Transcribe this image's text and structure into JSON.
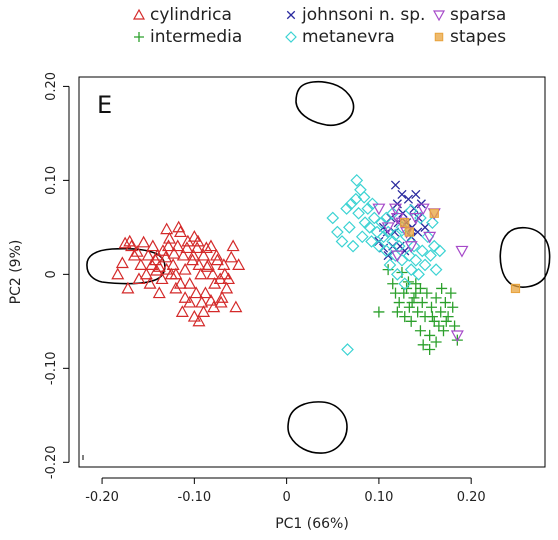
{
  "chart_data": {
    "type": "scatter",
    "panel_label": "E",
    "xlabel": "PC1 (66%)",
    "ylabel": "PC2 (9%)",
    "xlim": [
      -0.225,
      0.28
    ],
    "ylim": [
      -0.205,
      0.21
    ],
    "xticks": [
      {
        "value": -0.2,
        "label": "-0.20"
      },
      {
        "value": -0.1,
        "label": "-0.10"
      },
      {
        "value": 0.0,
        "label": "0"
      },
      {
        "value": 0.1,
        "label": "0.10"
      },
      {
        "value": 0.2,
        "label": "0.20"
      }
    ],
    "yticks": [
      {
        "value": -0.2,
        "label": "-0.20"
      },
      {
        "value": -0.1,
        "label": "-0.10"
      },
      {
        "value": 0.0,
        "label": "0"
      },
      {
        "value": 0.1,
        "label": "0.10"
      },
      {
        "value": 0.2,
        "label": "0.20"
      }
    ],
    "grid": false,
    "legend_position": "top",
    "series": [
      {
        "name": "cylindrica",
        "marker": "triangle-up",
        "color": "#d42a2a",
        "points": [
          [
            -0.175,
            0.033
          ],
          [
            -0.168,
            0.03
          ],
          [
            -0.162,
            0.024
          ],
          [
            -0.155,
            0.034
          ],
          [
            -0.15,
            0.02
          ],
          [
            -0.146,
            0.01
          ],
          [
            -0.142,
            0.015
          ],
          [
            -0.138,
            0.008
          ],
          [
            -0.134,
            0.025
          ],
          [
            -0.13,
            0.048
          ],
          [
            -0.127,
            0.038
          ],
          [
            -0.123,
            0.01
          ],
          [
            -0.12,
            0.0
          ],
          [
            -0.118,
            0.03
          ],
          [
            -0.115,
            0.045
          ],
          [
            -0.112,
            0.02
          ],
          [
            -0.11,
            0.005
          ],
          [
            -0.107,
            0.035
          ],
          [
            -0.105,
            -0.01
          ],
          [
            -0.102,
            0.015
          ],
          [
            -0.1,
            0.04
          ],
          [
            -0.097,
            0.028
          ],
          [
            -0.095,
            0.01
          ],
          [
            -0.093,
            0.0
          ],
          [
            -0.09,
            0.02
          ],
          [
            -0.088,
            -0.02
          ],
          [
            -0.085,
            0.01
          ],
          [
            -0.082,
            0.03
          ],
          [
            -0.08,
            0.0
          ],
          [
            -0.078,
            -0.01
          ],
          [
            -0.075,
            0.015
          ],
          [
            -0.072,
            -0.005
          ],
          [
            -0.07,
            -0.025
          ],
          [
            -0.067,
            0.0
          ],
          [
            -0.065,
            -0.015
          ],
          [
            -0.06,
            0.018
          ],
          [
            -0.055,
            -0.035
          ],
          [
            -0.052,
            0.01
          ],
          [
            -0.058,
            0.03
          ],
          [
            -0.082,
            -0.028
          ],
          [
            -0.09,
            -0.04
          ],
          [
            -0.095,
            -0.05
          ],
          [
            -0.1,
            -0.045
          ],
          [
            -0.105,
            -0.03
          ],
          [
            -0.11,
            -0.025
          ],
          [
            -0.115,
            -0.01
          ],
          [
            -0.12,
            -0.015
          ],
          [
            -0.125,
            0.0
          ],
          [
            -0.13,
            0.005
          ],
          [
            -0.135,
            -0.005
          ],
          [
            -0.14,
            0.02
          ],
          [
            -0.145,
            0.03
          ],
          [
            -0.158,
            0.01
          ],
          [
            -0.165,
            0.02
          ],
          [
            -0.17,
            0.035
          ],
          [
            -0.178,
            0.012
          ],
          [
            -0.183,
            0.0
          ],
          [
            -0.172,
            -0.015
          ],
          [
            -0.16,
            -0.005
          ],
          [
            -0.152,
            0.0
          ],
          [
            -0.148,
            -0.01
          ],
          [
            -0.138,
            -0.02
          ],
          [
            -0.128,
            0.03
          ],
          [
            -0.122,
            0.022
          ],
          [
            -0.108,
            0.028
          ],
          [
            -0.098,
            -0.02
          ],
          [
            -0.092,
            -0.03
          ],
          [
            -0.086,
            0.008
          ],
          [
            -0.076,
            0.02
          ],
          [
            -0.068,
            0.01
          ],
          [
            -0.063,
            -0.005
          ],
          [
            -0.071,
            -0.03
          ],
          [
            -0.079,
            -0.035
          ],
          [
            -0.113,
            -0.04
          ],
          [
            -0.117,
            0.05
          ],
          [
            -0.131,
            0.018
          ],
          [
            -0.141,
            0.004
          ],
          [
            -0.096,
            0.035
          ],
          [
            -0.101,
            0.02
          ],
          [
            -0.087,
            0.028
          ]
        ]
      },
      {
        "name": "intermedia",
        "marker": "plus",
        "color": "#2ca02c",
        "points": [
          [
            0.11,
            0.005
          ],
          [
            0.115,
            -0.01
          ],
          [
            0.118,
            -0.02
          ],
          [
            0.122,
            -0.03
          ],
          [
            0.125,
            0.002
          ],
          [
            0.128,
            -0.045
          ],
          [
            0.13,
            -0.015
          ],
          [
            0.133,
            -0.035
          ],
          [
            0.135,
            -0.05
          ],
          [
            0.138,
            -0.025
          ],
          [
            0.14,
            -0.01
          ],
          [
            0.142,
            -0.04
          ],
          [
            0.145,
            -0.06
          ],
          [
            0.147,
            -0.03
          ],
          [
            0.15,
            -0.045
          ],
          [
            0.152,
            -0.02
          ],
          [
            0.155,
            -0.065
          ],
          [
            0.157,
            -0.035
          ],
          [
            0.16,
            -0.05
          ],
          [
            0.162,
            -0.025
          ],
          [
            0.165,
            -0.055
          ],
          [
            0.167,
            -0.04
          ],
          [
            0.17,
            -0.06
          ],
          [
            0.172,
            -0.03
          ],
          [
            0.175,
            -0.045
          ],
          [
            0.178,
            -0.02
          ],
          [
            0.18,
            -0.035
          ],
          [
            0.182,
            -0.055
          ],
          [
            0.185,
            -0.07
          ],
          [
            0.148,
            -0.075
          ],
          [
            0.155,
            -0.08
          ],
          [
            0.162,
            -0.072
          ],
          [
            0.14,
            -0.02
          ],
          [
            0.132,
            -0.008
          ],
          [
            0.12,
            -0.04
          ],
          [
            0.1,
            -0.04
          ],
          [
            0.158,
            -0.045
          ],
          [
            0.168,
            -0.015
          ],
          [
            0.173,
            -0.05
          ],
          [
            0.145,
            -0.015
          ],
          [
            0.136,
            -0.03
          ],
          [
            0.127,
            -0.02
          ]
        ]
      },
      {
        "name": "johnsoni n. sp.",
        "marker": "x",
        "color": "#2b2b9f",
        "points": [
          [
            0.1,
            0.035
          ],
          [
            0.105,
            0.05
          ],
          [
            0.11,
            0.02
          ],
          [
            0.113,
            0.06
          ],
          [
            0.117,
            0.045
          ],
          [
            0.12,
            0.075
          ],
          [
            0.123,
            0.03
          ],
          [
            0.126,
            0.065
          ],
          [
            0.13,
            0.055
          ],
          [
            0.132,
            0.08
          ],
          [
            0.135,
            0.04
          ],
          [
            0.138,
            0.07
          ],
          [
            0.14,
            0.085
          ],
          [
            0.143,
            0.06
          ],
          [
            0.146,
            0.075
          ],
          [
            0.15,
            0.05
          ],
          [
            0.118,
            0.095
          ],
          [
            0.125,
            0.085
          ],
          [
            0.109,
            0.045
          ],
          [
            0.142,
            0.045
          ],
          [
            0.128,
            0.025
          ],
          [
            0.136,
            0.05
          ],
          [
            0.115,
            0.03
          ],
          [
            0.105,
            0.028
          ],
          [
            0.121,
            0.055
          ]
        ]
      },
      {
        "name": "metanevra",
        "marker": "diamond",
        "color": "#3cd3d3",
        "points": [
          [
            0.05,
            0.06
          ],
          [
            0.055,
            0.045
          ],
          [
            0.06,
            0.035
          ],
          [
            0.065,
            0.07
          ],
          [
            0.068,
            0.05
          ],
          [
            0.07,
            0.075
          ],
          [
            0.072,
            0.03
          ],
          [
            0.075,
            0.08
          ],
          [
            0.078,
            0.065
          ],
          [
            0.08,
            0.09
          ],
          [
            0.082,
            0.04
          ],
          [
            0.085,
            0.055
          ],
          [
            0.088,
            0.07
          ],
          [
            0.09,
            0.05
          ],
          [
            0.092,
            0.035
          ],
          [
            0.095,
            0.06
          ],
          [
            0.098,
            0.045
          ],
          [
            0.1,
            0.03
          ],
          [
            0.103,
            0.055
          ],
          [
            0.105,
            0.04
          ],
          [
            0.108,
            0.025
          ],
          [
            0.11,
            0.045
          ],
          [
            0.112,
            0.01
          ],
          [
            0.115,
            0.035
          ],
          [
            0.118,
            0.02
          ],
          [
            0.12,
            0.0
          ],
          [
            0.122,
            0.03
          ],
          [
            0.125,
            0.015
          ],
          [
            0.128,
            -0.01
          ],
          [
            0.13,
            0.04
          ],
          [
            0.133,
            0.02
          ],
          [
            0.135,
            0.005
          ],
          [
            0.138,
            0.03
          ],
          [
            0.14,
            0.015
          ],
          [
            0.143,
            0.0
          ],
          [
            0.147,
            0.025
          ],
          [
            0.15,
            0.01
          ],
          [
            0.153,
            0.04
          ],
          [
            0.156,
            0.02
          ],
          [
            0.16,
            0.03
          ],
          [
            0.162,
            0.005
          ],
          [
            0.166,
            0.025
          ],
          [
            0.115,
            0.065
          ],
          [
            0.108,
            0.06
          ],
          [
            0.076,
            0.1
          ],
          [
            0.084,
            0.082
          ],
          [
            0.093,
            0.075
          ],
          [
            0.066,
            -0.08
          ],
          [
            0.125,
            0.05
          ],
          [
            0.145,
            0.06
          ],
          [
            0.158,
            0.055
          ],
          [
            0.135,
            0.068
          ],
          [
            0.118,
            0.042
          ]
        ]
      },
      {
        "name": "sparsa",
        "marker": "triangle-down",
        "color": "#a64ac9",
        "points": [
          [
            0.12,
            0.06
          ],
          [
            0.125,
            0.055
          ],
          [
            0.118,
            0.07
          ],
          [
            0.13,
            0.045
          ],
          [
            0.11,
            0.05
          ],
          [
            0.14,
            0.06
          ],
          [
            0.148,
            0.07
          ],
          [
            0.155,
            0.04
          ],
          [
            0.16,
            0.065
          ],
          [
            0.19,
            0.025
          ],
          [
            0.1,
            0.07
          ],
          [
            0.135,
            0.03
          ],
          [
            0.12,
            0.02
          ],
          [
            0.185,
            -0.065
          ]
        ]
      },
      {
        "name": "stapes",
        "marker": "square",
        "color": "#e8a33c",
        "points": [
          [
            0.16,
            0.065
          ],
          [
            0.128,
            0.055
          ],
          [
            0.248,
            -0.015
          ],
          [
            0.133,
            0.045
          ]
        ]
      }
    ],
    "reference_outlines": [
      "left-outline",
      "right-outline",
      "top-outline",
      "bottom-outline"
    ]
  }
}
